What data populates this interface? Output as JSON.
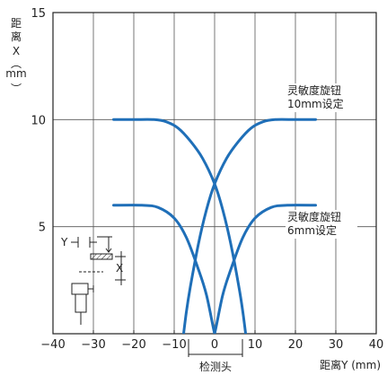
{
  "chart_data": {
    "type": "line",
    "xlabel": "距离Y (mm)",
    "ylabel_chars": [
      "距",
      "离",
      "X",
      "︵",
      "mm",
      "︶"
    ],
    "xlim": [
      -40,
      40
    ],
    "ylim": [
      0,
      15
    ],
    "x_ticks": [
      -40,
      -30,
      -20,
      -10,
      0,
      10,
      20,
      30,
      40
    ],
    "x_tick_labels": [
      "−40",
      "−30",
      "−20",
      "−10",
      "0",
      "10",
      "20",
      "30",
      "40"
    ],
    "y_ticks": [
      5,
      10,
      15
    ],
    "y_tick_labels": [
      "5",
      "10",
      "15"
    ],
    "grid": true,
    "line_color": "#1f6fb8",
    "series": [
      {
        "name": "灵敏度旋钮 10mm设定",
        "side": "left",
        "points": [
          [
            -25,
            10
          ],
          [
            -20,
            10
          ],
          [
            -15,
            10
          ],
          [
            -12,
            9.9
          ],
          [
            -9,
            9.6
          ],
          [
            -6,
            9
          ],
          [
            -3,
            8.2
          ],
          [
            0,
            7
          ],
          [
            2,
            5.8
          ],
          [
            4,
            4.2
          ],
          [
            6,
            2.2
          ],
          [
            7,
            1
          ],
          [
            8,
            -0.5
          ]
        ]
      },
      {
        "name": "灵敏度旋钮 10mm设定",
        "side": "right",
        "points": [
          [
            -8,
            -0.5
          ],
          [
            -7,
            1
          ],
          [
            -6,
            2.2
          ],
          [
            -4,
            4.2
          ],
          [
            -2,
            5.8
          ],
          [
            0,
            7
          ],
          [
            3,
            8.2
          ],
          [
            6,
            9
          ],
          [
            9,
            9.6
          ],
          [
            12,
            9.9
          ],
          [
            15,
            10
          ],
          [
            20,
            10
          ],
          [
            25,
            10
          ]
        ]
      },
      {
        "name": "灵敏度旋钮 6mm设定",
        "side": "left",
        "points": [
          [
            -25,
            6
          ],
          [
            -18,
            6
          ],
          [
            -14,
            5.9
          ],
          [
            -10,
            5.4
          ],
          [
            -7,
            4.5
          ],
          [
            -4,
            3
          ],
          [
            -2,
            1.8
          ],
          [
            0,
            0
          ],
          [
            1,
            -0.5
          ]
        ]
      },
      {
        "name": "灵敏度旋钮 6mm设定",
        "side": "right",
        "points": [
          [
            -1,
            -0.5
          ],
          [
            0,
            0
          ],
          [
            2,
            1.8
          ],
          [
            4,
            3
          ],
          [
            7,
            4.5
          ],
          [
            10,
            5.4
          ],
          [
            14,
            5.9
          ],
          [
            18,
            6
          ],
          [
            25,
            6
          ]
        ]
      }
    ],
    "annotations": [
      {
        "lines": [
          "灵敏度旋钮",
          "10mm设定"
        ],
        "at": [
          20,
          10
        ]
      },
      {
        "lines": [
          "灵敏度旋钮",
          "6mm设定"
        ],
        "at": [
          20,
          6
        ]
      }
    ],
    "inset": {
      "label_y": "Y",
      "label_x": "X"
    },
    "bracket_label": "检测头"
  }
}
